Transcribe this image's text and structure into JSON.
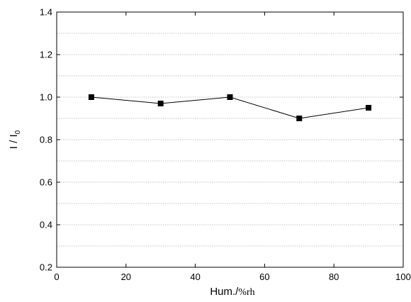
{
  "chart_data": {
    "type": "line",
    "x": [
      10,
      30,
      50,
      70,
      90
    ],
    "series": [
      {
        "values": [
          1.0,
          0.97,
          1.0,
          0.9,
          0.95
        ]
      }
    ],
    "xlabel": {
      "main": "Hum./",
      "unit": "%rh"
    },
    "ylabel": {
      "main": "I / I",
      "subscript": "0"
    },
    "xlim": [
      0,
      100
    ],
    "ylim": [
      0.2,
      1.4
    ],
    "x_ticks": [
      0,
      20,
      40,
      60,
      80,
      100
    ],
    "y_ticks": [
      0.2,
      0.4,
      0.6,
      0.8,
      1.0,
      1.2,
      1.4
    ],
    "x_tick_labels": [
      "0",
      "20",
      "40",
      "60",
      "80",
      "100"
    ],
    "y_tick_labels": [
      "0.2",
      "0.4",
      "0.6",
      "0.8",
      "1.0",
      "1.2",
      "1.4"
    ],
    "grid": {
      "horizontal": true,
      "vertical": false,
      "minor_horizontal": true
    },
    "marker": "square",
    "colors": {
      "line": "#000000",
      "marker": "#000000",
      "grid": "#b0b0b0",
      "axis": "#000000"
    }
  }
}
